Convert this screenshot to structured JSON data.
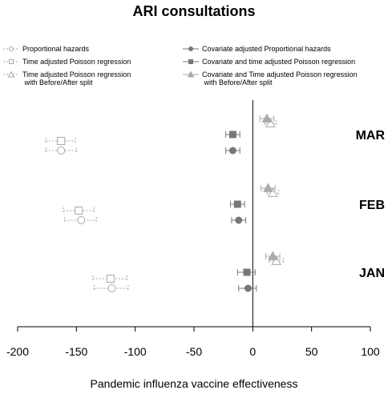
{
  "chart_data": {
    "type": "forest",
    "title": "ARI consultations",
    "xlabel": "Pandemic influenza vaccine effectiveness",
    "xlim": [
      -200,
      100
    ],
    "xticks": [
      "-200",
      "-150",
      "-100",
      "-50",
      "0",
      "50",
      "100"
    ],
    "groups": [
      "MAR",
      "FEB",
      "JAN"
    ],
    "series": [
      {
        "name": "Proportional hazards",
        "color": "#a8a8a8",
        "marker": "circle-open",
        "line": "dotted",
        "values": [
          {
            "group": "MAR",
            "est": -163,
            "lo": -176,
            "hi": -150
          },
          {
            "group": "FEB",
            "est": -146,
            "lo": -160,
            "hi": -133
          },
          {
            "group": "JAN",
            "est": -120,
            "lo": -135,
            "hi": -106
          }
        ]
      },
      {
        "name": "Time adjusted Poisson regression",
        "color": "#a8a8a8",
        "marker": "square-open",
        "line": "dotted",
        "values": [
          {
            "group": "MAR",
            "est": -163,
            "lo": -176,
            "hi": -151
          },
          {
            "group": "FEB",
            "est": -148,
            "lo": -161,
            "hi": -135
          },
          {
            "group": "JAN",
            "est": -121,
            "lo": -136,
            "hi": -107
          }
        ]
      },
      {
        "name": "Time adjusted Poisson regression\n with Before/After split",
        "color": "#a8a8a8",
        "marker": "triangle-open",
        "line": "dotted",
        "values": [
          {
            "group": "MAR",
            "est": 15,
            "lo": 10,
            "hi": 20
          },
          {
            "group": "FEB",
            "est": 17,
            "lo": 12,
            "hi": 22
          },
          {
            "group": "JAN",
            "est": 20,
            "lo": 14,
            "hi": 26
          }
        ]
      },
      {
        "name": "Covariate adjusted Proportional hazards",
        "color": "#777777",
        "marker": "circle-filled",
        "line": "solid",
        "values": [
          {
            "group": "MAR",
            "est": -17,
            "lo": -23,
            "hi": -11
          },
          {
            "group": "FEB",
            "est": -12,
            "lo": -18,
            "hi": -6
          },
          {
            "group": "JAN",
            "est": -4,
            "lo": -12,
            "hi": 3
          }
        ]
      },
      {
        "name": "Covariate and time adjusted Poisson regression",
        "color": "#777777",
        "marker": "square-filled",
        "line": "solid",
        "values": [
          {
            "group": "MAR",
            "est": -17,
            "lo": -23,
            "hi": -11
          },
          {
            "group": "FEB",
            "est": -13,
            "lo": -19,
            "hi": -7
          },
          {
            "group": "JAN",
            "est": -5,
            "lo": -13,
            "hi": 2
          }
        ]
      },
      {
        "name": "Covariate and Time adjusted Poisson regression\n with Before/After split",
        "color": "#aaaaaa",
        "marker": "triangle-filled",
        "line": "solid",
        "values": [
          {
            "group": "MAR",
            "est": 12,
            "lo": 6,
            "hi": 18
          },
          {
            "group": "FEB",
            "est": 13,
            "lo": 7,
            "hi": 19
          },
          {
            "group": "JAN",
            "est": 17,
            "lo": 11,
            "hi": 23
          }
        ]
      }
    ]
  }
}
